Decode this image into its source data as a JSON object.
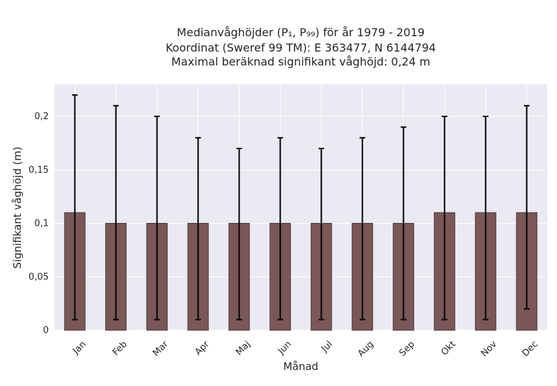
{
  "chart_data": {
    "type": "bar",
    "title_lines": [
      "Medianvåghöjder (P₁, P₉₉) för år 1979 - 2019",
      "Koordinat (Sweref 99 TM): E 363477, N 6144794",
      "Maximal beräknad signifikant våghöjd: 0,24 m"
    ],
    "xlabel": "Månad",
    "ylabel": "Signifikant våghöjd (m)",
    "categories": [
      "Jan",
      "Feb",
      "Mar",
      "Apr",
      "Maj",
      "Jun",
      "Jul",
      "Aug",
      "Sep",
      "Okt",
      "Nov",
      "Dec"
    ],
    "values": [
      0.11,
      0.1,
      0.1,
      0.1,
      0.1,
      0.1,
      0.1,
      0.1,
      0.1,
      0.11,
      0.11,
      0.11
    ],
    "error_low": [
      0.01,
      0.01,
      0.01,
      0.01,
      0.01,
      0.01,
      0.01,
      0.01,
      0.01,
      0.01,
      0.01,
      0.02
    ],
    "error_high": [
      0.22,
      0.21,
      0.2,
      0.18,
      0.17,
      0.18,
      0.17,
      0.18,
      0.19,
      0.2,
      0.2,
      0.21
    ],
    "ylim": [
      0,
      0.23
    ],
    "yticks": [
      0,
      0.05,
      0.1,
      0.15,
      0.2
    ],
    "ytick_labels": [
      "0",
      "0,05",
      "0,1",
      "0,15",
      "0,2"
    ],
    "grid": true,
    "colors": {
      "bar": "#7a5858",
      "bar_edge": "#4a3434",
      "plot_background": "#eaeaf2",
      "grid": "#ffffff",
      "error_bar": "#000000"
    }
  }
}
